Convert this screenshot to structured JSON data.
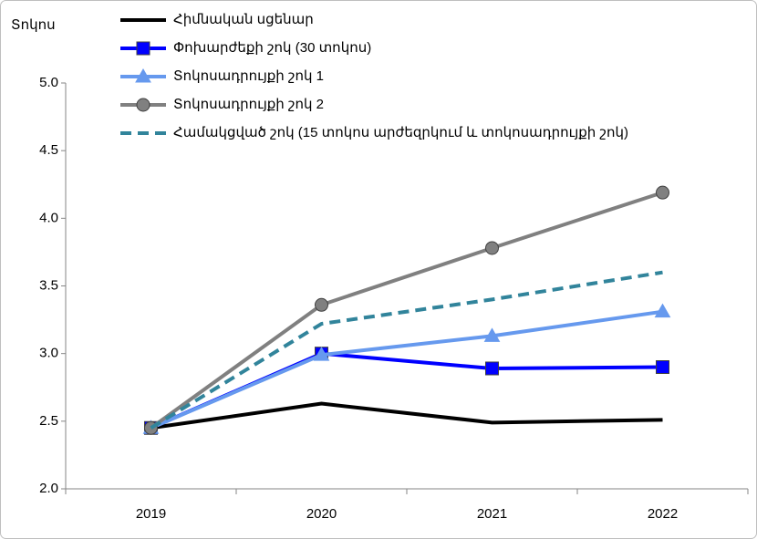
{
  "chart_data": {
    "type": "line",
    "y_label": "Տոկոս",
    "categories": [
      "2019",
      "2020",
      "2021",
      "2022"
    ],
    "ylim": [
      2.0,
      5.0
    ],
    "yticks": [
      {
        "value": 2.0,
        "label": "2.0"
      },
      {
        "value": 2.5,
        "label": "2.5"
      },
      {
        "value": 3.0,
        "label": "3.0"
      },
      {
        "value": 3.5,
        "label": "3.5"
      },
      {
        "value": 4.0,
        "label": "4.0"
      },
      {
        "value": 4.5,
        "label": "4.5"
      },
      {
        "value": 5.0,
        "label": "5.0"
      }
    ],
    "grid": false,
    "legend": "top",
    "series": [
      {
        "name": "Հիմնական սցենար",
        "color": "#000000",
        "marker": null,
        "dash": false,
        "values": [
          2.45,
          2.63,
          2.49,
          2.51
        ]
      },
      {
        "name": "Փոխարժեքի շոկ (30 տոկոս)",
        "color": "#0000ff",
        "marker": "square",
        "dash": false,
        "values": [
          2.45,
          3.0,
          2.89,
          2.9
        ]
      },
      {
        "name": "Տոկոսադրույքի շոկ 1",
        "color": "#6699ee",
        "marker": "triangle",
        "dash": false,
        "values": [
          2.45,
          2.99,
          3.13,
          3.31
        ]
      },
      {
        "name": "Տոկոսադրույքի շոկ 2",
        "color": "#808080",
        "marker": "circle",
        "dash": false,
        "values": [
          2.45,
          3.36,
          3.78,
          4.19
        ]
      },
      {
        "name": "Համակցված շոկ (15 տոկոս արժեզրկում և տոկոսադրույքի շոկ)",
        "color": "#31849b",
        "marker": null,
        "dash": true,
        "values": [
          2.45,
          3.22,
          3.4,
          3.6
        ]
      }
    ]
  }
}
